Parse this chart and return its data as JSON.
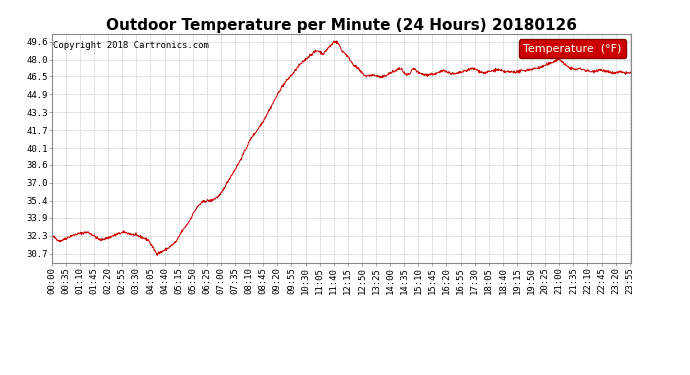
{
  "title": "Outdoor Temperature per Minute (24 Hours) 20180126",
  "copyright_text": "Copyright 2018 Cartronics.com",
  "legend_label": "Temperature  (°F)",
  "line_color": "#cc0000",
  "background_color": "#ffffff",
  "grid_color": "#bbbbbb",
  "yticks": [
    30.7,
    32.3,
    33.9,
    35.4,
    37.0,
    38.6,
    40.1,
    41.7,
    43.3,
    44.9,
    46.5,
    48.0,
    49.6
  ],
  "ymin": 29.9,
  "ymax": 50.3,
  "title_fontsize": 11,
  "axis_fontsize": 6.5,
  "legend_fontsize": 8,
  "copyright_fontsize": 6.5
}
